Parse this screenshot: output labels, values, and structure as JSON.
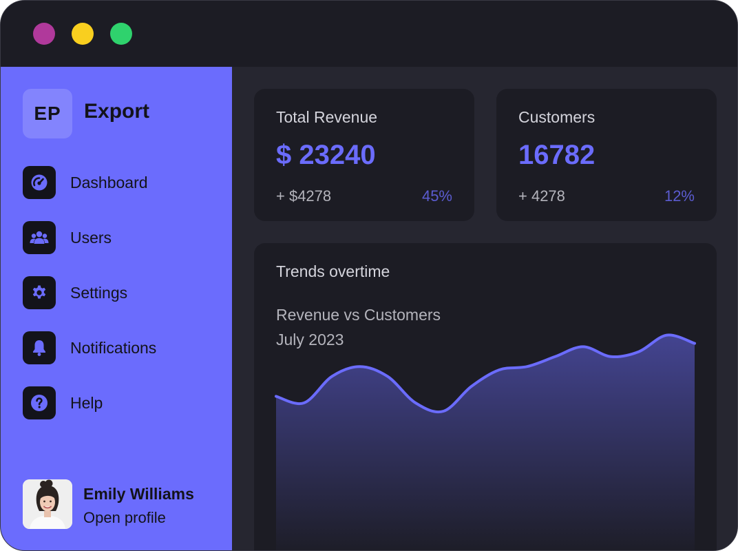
{
  "window": {
    "controls": [
      {
        "name": "close",
        "color": "#b0399b"
      },
      {
        "name": "minimize",
        "color": "#f9cf1f"
      },
      {
        "name": "zoom",
        "color": "#2fd26d"
      }
    ]
  },
  "sidebar": {
    "logo_text": "EP",
    "brand_name": "Export",
    "items": [
      {
        "label": "Dashboard",
        "icon": "gauge-icon"
      },
      {
        "label": "Users",
        "icon": "users-icon"
      },
      {
        "label": "Settings",
        "icon": "gear-icon"
      },
      {
        "label": "Notifications",
        "icon": "bell-icon"
      },
      {
        "label": "Help",
        "icon": "question-icon"
      }
    ],
    "profile": {
      "name": "Emily Williams",
      "link": "Open profile"
    }
  },
  "cards": {
    "revenue": {
      "title": "Total Revenue",
      "value": "$ 23240",
      "delta": "+ $4278",
      "percent": "45%"
    },
    "customers": {
      "title": "Customers",
      "value": "16782",
      "delta": "+ 4278",
      "percent": "12%"
    }
  },
  "trends": {
    "title": "Trends overtime",
    "subtitle": "Revenue vs Customers",
    "period": "July 2023"
  },
  "colors": {
    "accent": "#6b6cfd",
    "background": "#1c1c24"
  },
  "chart_data": {
    "type": "area",
    "series": [
      {
        "name": "Revenue vs Customers",
        "values": [
          54,
          50,
          66,
          72,
          66,
          50,
          45,
          60,
          70,
          72,
          78,
          84,
          78,
          81,
          91,
          86
        ]
      }
    ],
    "ylim": [
      0,
      100
    ],
    "title": "Trends overtime",
    "subtitle": "Revenue vs Customers",
    "period": "July 2023"
  }
}
